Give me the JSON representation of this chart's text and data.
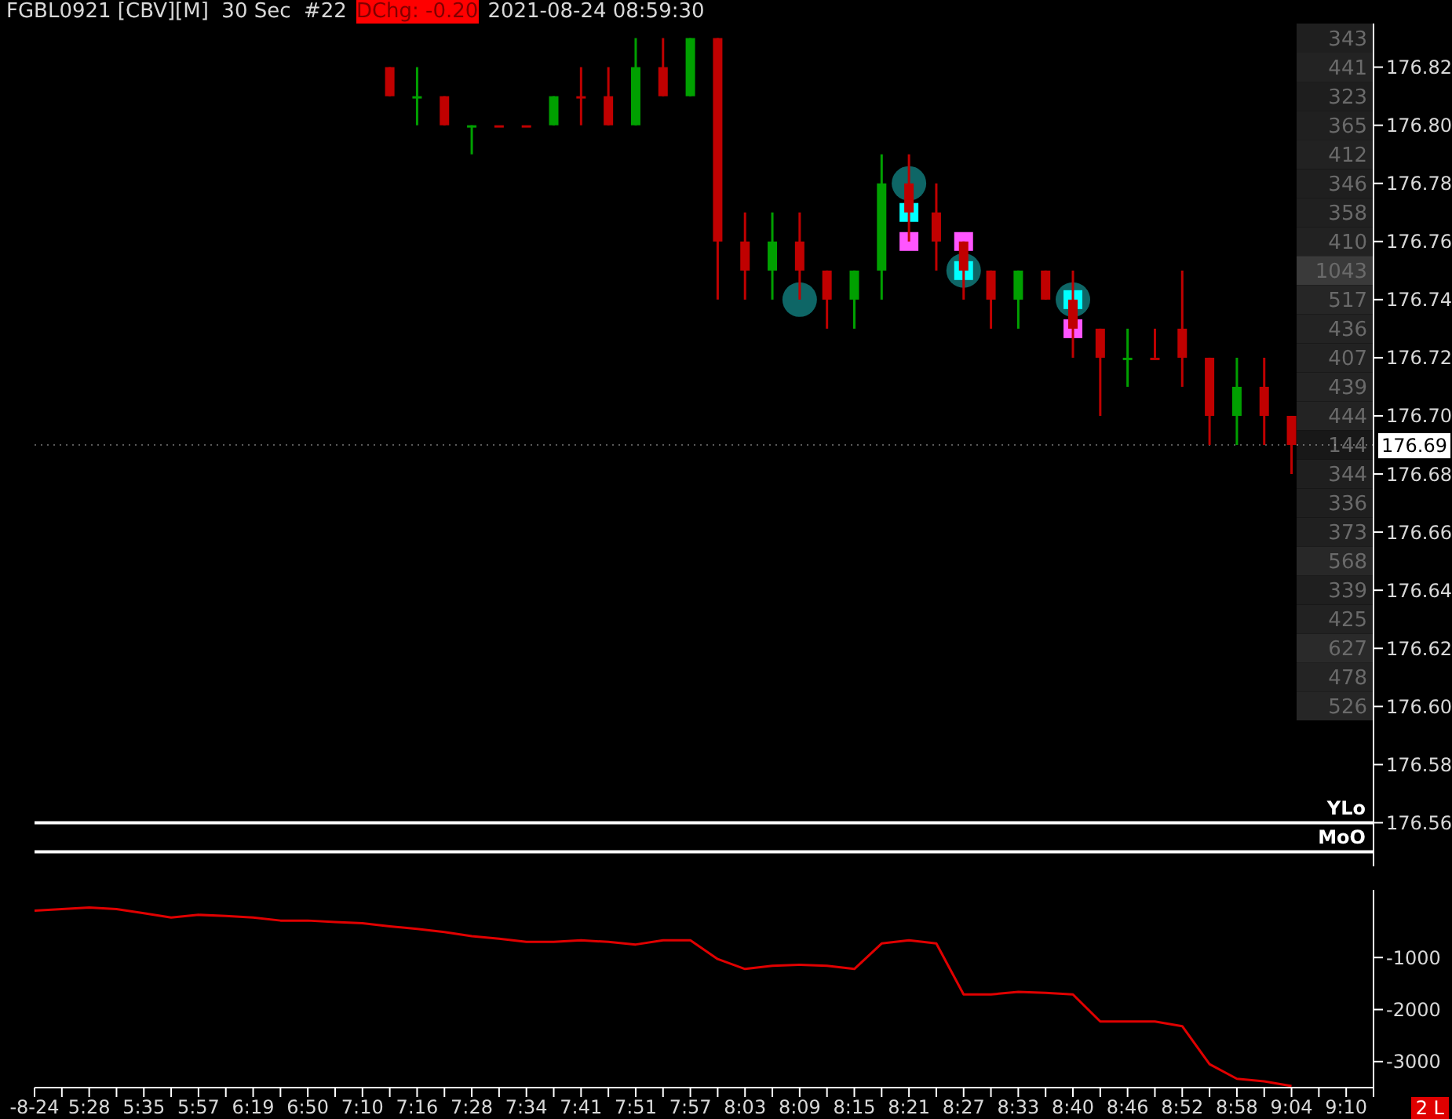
{
  "chart_data": [
    {
      "type": "candlestick",
      "title": "FGBL0921 [CBV][M]  30 Sec  #22",
      "annotations": [
        "DChg: -0.20",
        "2021-08-24 08:59:30"
      ],
      "categories": [
        "-8-24",
        null,
        "5:28",
        null,
        "5:35",
        null,
        "5:57",
        null,
        "6:19",
        null,
        "6:50",
        null,
        "7:10",
        null,
        "7:16",
        null,
        "7:28",
        null,
        "7:34",
        null,
        "7:41",
        null,
        "7:51",
        null,
        "7:57",
        null,
        "8:03",
        null,
        "8:09",
        null,
        "8:15",
        null,
        "8:21",
        null,
        "8:27",
        null,
        "8:33",
        null,
        "8:40",
        null,
        "8:46",
        null,
        "8:52",
        null,
        "8:58",
        null,
        "9:04",
        null,
        "9:10",
        null
      ],
      "ohlc": [
        null,
        null,
        null,
        null,
        null,
        null,
        null,
        null,
        null,
        null,
        null,
        null,
        null,
        [
          176.82,
          176.82,
          176.81,
          176.81
        ],
        [
          176.81,
          176.82,
          176.8,
          176.81
        ],
        [
          176.81,
          176.81,
          176.8,
          176.8
        ],
        [
          176.8,
          176.8,
          176.79,
          176.8
        ],
        [
          176.8,
          176.8,
          176.8,
          176.8
        ],
        [
          176.8,
          176.8,
          176.8,
          176.8
        ],
        [
          176.8,
          176.81,
          176.8,
          176.81
        ],
        [
          176.81,
          176.82,
          176.8,
          176.81
        ],
        [
          176.81,
          176.82,
          176.8,
          176.8
        ],
        [
          176.8,
          176.83,
          176.8,
          176.82
        ],
        [
          176.82,
          176.83,
          176.81,
          176.81
        ],
        [
          176.81,
          176.83,
          176.81,
          176.83
        ],
        [
          176.83,
          176.83,
          176.74,
          176.76
        ],
        [
          176.76,
          176.77,
          176.74,
          176.75
        ],
        [
          176.75,
          176.77,
          176.74,
          176.76
        ],
        [
          176.76,
          176.77,
          176.74,
          176.75
        ],
        [
          176.75,
          176.75,
          176.73,
          176.74
        ],
        [
          176.74,
          176.75,
          176.73,
          176.75
        ],
        [
          176.75,
          176.79,
          176.74,
          176.78
        ],
        [
          176.78,
          176.79,
          176.76,
          176.77
        ],
        [
          176.77,
          176.78,
          176.75,
          176.76
        ],
        [
          176.76,
          176.76,
          176.74,
          176.75
        ],
        [
          176.75,
          176.75,
          176.73,
          176.74
        ],
        [
          176.74,
          176.75,
          176.73,
          176.75
        ],
        [
          176.75,
          176.75,
          176.74,
          176.74
        ],
        [
          176.74,
          176.75,
          176.72,
          176.73
        ],
        [
          176.73,
          176.73,
          176.7,
          176.72
        ],
        [
          176.72,
          176.73,
          176.71,
          176.72
        ],
        [
          176.72,
          176.73,
          176.72,
          176.72
        ],
        [
          176.73,
          176.75,
          176.71,
          176.72
        ],
        [
          176.72,
          176.72,
          176.69,
          176.7
        ],
        [
          176.7,
          176.72,
          176.69,
          176.71
        ],
        [
          176.71,
          176.72,
          176.69,
          176.7
        ],
        [
          176.7,
          176.7,
          176.68,
          176.69
        ],
        null,
        null,
        null
      ],
      "colors": [
        null,
        null,
        null,
        null,
        null,
        null,
        null,
        null,
        null,
        null,
        null,
        null,
        null,
        "#c00000",
        "#00a000",
        "#c00000",
        "#00a000",
        "#c00000",
        "#c00000",
        "#00a000",
        "#c00000",
        "#c00000",
        "#00a000",
        "#c00000",
        "#00a000",
        "#c00000",
        "#c00000",
        "#00a000",
        "#c00000",
        "#c00000",
        "#00a000",
        "#00a000",
        "#c00000",
        "#c00000",
        "#c00000",
        "#c00000",
        "#00a000",
        "#c00000",
        "#c00000",
        "#c00000",
        "#00a000",
        "#c00000",
        "#c00000",
        "#c00000",
        "#00a000",
        "#c00000",
        "#c00000",
        null,
        null,
        null
      ],
      "series": [
        {
          "type": "scatter",
          "marker": "circle",
          "color": "#128080",
          "x": [
            "8:09",
            "8:21",
            "8:27",
            "8:40"
          ],
          "values": [
            176.74,
            176.78,
            176.75,
            176.74
          ]
        },
        {
          "type": "scatter",
          "marker": "square",
          "color": "#00ffff",
          "x": [
            "8:21",
            "8:27",
            "8:40"
          ],
          "values": [
            176.77,
            176.75,
            176.74
          ]
        },
        {
          "type": "scatter",
          "marker": "square",
          "color": "#ff55ff",
          "x": [
            "8:21",
            "8:27",
            "8:40"
          ],
          "values": [
            176.76,
            176.76,
            176.73
          ]
        }
      ],
      "ylim": [
        176.545,
        176.835
      ],
      "yticks": [
        176.56,
        176.58,
        {
          "value": 176.6,
          "label": "176.60"
        },
        176.62,
        176.64,
        176.66,
        176.68,
        {
          "value": 176.7,
          "label": "176.70"
        },
        176.72,
        176.74,
        176.76,
        176.78,
        {
          "value": 176.8,
          "label": "176.80"
        },
        176.82
      ],
      "ref_lines": [
        {
          "axis": "y",
          "value": 176.56,
          "label": "YLo",
          "color": "#ffffff",
          "line_style": "solid"
        },
        {
          "axis": "y",
          "value": 176.55,
          "label": "MoO",
          "color": "#ffffff",
          "line_style": "solid"
        },
        {
          "axis": "y",
          "value": 176.69,
          "label": "176.69",
          "color": "#ffffff",
          "line_style": "dotted"
        }
      ],
      "tick_labels": "y"
    },
    {
      "type": "heatmap",
      "categories": [
        null
      ],
      "y_categories": [
        null,
        null,
        null,
        null,
        null,
        null,
        null,
        null,
        null,
        null,
        null,
        null,
        null,
        null,
        null,
        null,
        null,
        null,
        null,
        null,
        null,
        null,
        null,
        null
      ],
      "cells": [
        [
          343
        ],
        [
          441
        ],
        [
          323
        ],
        [
          365
        ],
        [
          412
        ],
        [
          346
        ],
        [
          358
        ],
        [
          410
        ],
        [
          1043
        ],
        [
          517
        ],
        [
          436
        ],
        [
          407
        ],
        [
          439
        ],
        [
          444
        ],
        [
          144
        ],
        [
          344
        ],
        [
          336
        ],
        [
          373
        ],
        [
          568
        ],
        [
          339
        ],
        [
          425
        ],
        [
          627
        ],
        [
          478
        ],
        [
          526
        ]
      ],
      "data_labels": true
    },
    {
      "type": "line",
      "annotations": [
        "2 L"
      ],
      "categories": [
        "-8-24",
        null,
        "5:28",
        null,
        "5:35",
        null,
        "5:57",
        null,
        "6:19",
        null,
        "6:50",
        null,
        "7:10",
        null,
        "7:16",
        null,
        "7:28",
        null,
        "7:34",
        null,
        "7:41",
        null,
        "7:51",
        null,
        "7:57",
        null,
        "8:03",
        null,
        "8:09",
        null,
        "8:15",
        null,
        "8:21",
        null,
        "8:27",
        null,
        "8:33",
        null,
        "8:40",
        null,
        "8:46",
        null,
        "8:52",
        null,
        "8:58",
        null,
        "9:04",
        null,
        "9:10",
        null
      ],
      "values": [
        -100,
        -70,
        -40,
        -70,
        -150,
        -230,
        -180,
        -200,
        -230,
        -290,
        -290,
        -320,
        -340,
        -400,
        -450,
        -510,
        -590,
        -640,
        -700,
        -700,
        -670,
        -700,
        -750,
        -670,
        -670,
        -1030,
        -1220,
        -1160,
        -1140,
        -1160,
        -1220,
        -730,
        -670,
        -730,
        -1710,
        -1710,
        -1660,
        -1680,
        -1710,
        -2230,
        -2230,
        -2230,
        -2320,
        -3050,
        -3330,
        -3380,
        -3470,
        null,
        null,
        null
      ],
      "color": "#e00000",
      "ylim": [
        -3500,
        300
      ],
      "yticks": [
        -1000,
        -2000,
        -3000
      ]
    }
  ]
}
